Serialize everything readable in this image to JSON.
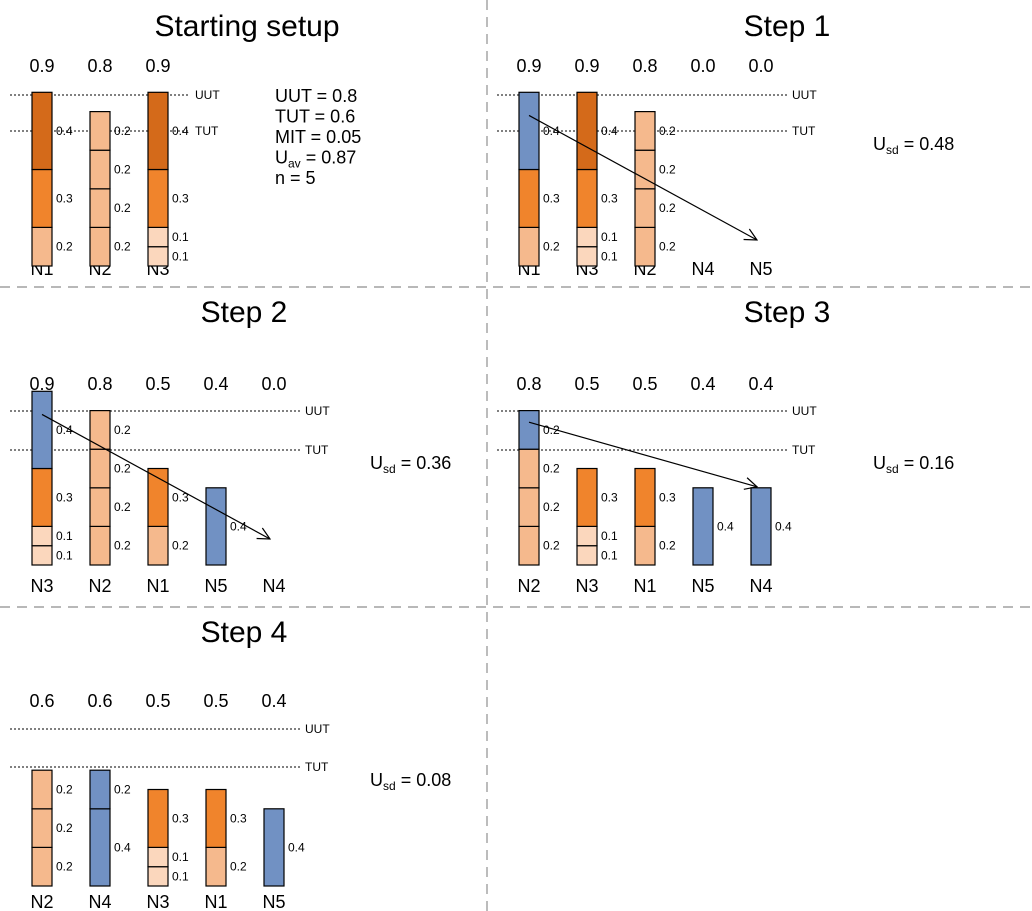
{
  "colors": {
    "very_high": "#d46a1a",
    "high": "#f0842c",
    "medium": "#f5b98d",
    "low": "#fbd7bd",
    "moved": "#7191c3",
    "divider": "#a0a0a0"
  },
  "labels": {
    "uut": "UUT",
    "tut": "TUT",
    "usd_prefix": "U",
    "usd_sub": "sd",
    "usd_sep": " = "
  },
  "params": [
    {
      "name": "UUT",
      "text": "UUT = 0.8"
    },
    {
      "name": "TUT",
      "text": "TUT = 0.6"
    },
    {
      "name": "MIT",
      "text": "MIT = 0.05"
    },
    {
      "name": "Uav",
      "main": "U",
      "sub": "av",
      "rest": " = 0.87"
    },
    {
      "name": "n",
      "text": "n = 5"
    }
  ],
  "panels": [
    {
      "title": "Starting setup",
      "nodes": [
        {
          "name": "N1",
          "util": "0.9",
          "segments": [
            {
              "value": 0.2,
              "c": "medium"
            },
            {
              "value": 0.3,
              "c": "high"
            },
            {
              "value": 0.4,
              "c": "very_high"
            }
          ]
        },
        {
          "name": "N2",
          "util": "0.8",
          "segments": [
            {
              "value": 0.2,
              "c": "medium"
            },
            {
              "value": 0.2,
              "c": "medium"
            },
            {
              "value": 0.2,
              "c": "medium"
            },
            {
              "value": 0.2,
              "c": "medium"
            }
          ]
        },
        {
          "name": "N3",
          "util": "0.9",
          "segments": [
            {
              "value": 0.1,
              "c": "low"
            },
            {
              "value": 0.1,
              "c": "low"
            },
            {
              "value": 0.3,
              "c": "high"
            },
            {
              "value": 0.4,
              "c": "very_high"
            }
          ]
        }
      ]
    },
    {
      "title": "Step 1",
      "usd": "0.48",
      "nodes": [
        {
          "name": "N1",
          "util": "0.9",
          "segments": [
            {
              "value": 0.2,
              "c": "medium"
            },
            {
              "value": 0.3,
              "c": "high"
            },
            {
              "value": 0.4,
              "c": "moved"
            }
          ]
        },
        {
          "name": "N3",
          "util": "0.9",
          "segments": [
            {
              "value": 0.1,
              "c": "low"
            },
            {
              "value": 0.1,
              "c": "low"
            },
            {
              "value": 0.3,
              "c": "high"
            },
            {
              "value": 0.4,
              "c": "very_high"
            }
          ]
        },
        {
          "name": "N2",
          "util": "0.8",
          "segments": [
            {
              "value": 0.2,
              "c": "medium"
            },
            {
              "value": 0.2,
              "c": "medium"
            },
            {
              "value": 0.2,
              "c": "medium"
            },
            {
              "value": 0.2,
              "c": "medium"
            }
          ]
        },
        {
          "name": "N4",
          "util": "0.0",
          "segments": []
        },
        {
          "name": "N5",
          "util": "0.0",
          "segments": []
        }
      ],
      "arrow": {
        "from": 0,
        "to": 4
      }
    },
    {
      "title": "Step 2",
      "usd": "0.36",
      "nodes": [
        {
          "name": "N3",
          "util": "0.9",
          "segments": [
            {
              "value": 0.1,
              "c": "low"
            },
            {
              "value": 0.1,
              "c": "low"
            },
            {
              "value": 0.3,
              "c": "high"
            },
            {
              "value": 0.4,
              "c": "moved"
            }
          ]
        },
        {
          "name": "N2",
          "util": "0.8",
          "segments": [
            {
              "value": 0.2,
              "c": "medium"
            },
            {
              "value": 0.2,
              "c": "medium"
            },
            {
              "value": 0.2,
              "c": "medium"
            },
            {
              "value": 0.2,
              "c": "medium"
            }
          ]
        },
        {
          "name": "N1",
          "util": "0.5",
          "segments": [
            {
              "value": 0.2,
              "c": "medium"
            },
            {
              "value": 0.3,
              "c": "high"
            }
          ]
        },
        {
          "name": "N5",
          "util": "0.4",
          "segments": [
            {
              "value": 0.4,
              "c": "moved"
            }
          ]
        },
        {
          "name": "N4",
          "util": "0.0",
          "segments": []
        }
      ],
      "arrow": {
        "from": 0,
        "to": 4
      }
    },
    {
      "title": "Step 3",
      "usd": "0.16",
      "nodes": [
        {
          "name": "N2",
          "util": "0.8",
          "segments": [
            {
              "value": 0.2,
              "c": "medium"
            },
            {
              "value": 0.2,
              "c": "medium"
            },
            {
              "value": 0.2,
              "c": "medium"
            },
            {
              "value": 0.2,
              "c": "moved"
            }
          ]
        },
        {
          "name": "N3",
          "util": "0.5",
          "segments": [
            {
              "value": 0.1,
              "c": "low"
            },
            {
              "value": 0.1,
              "c": "low"
            },
            {
              "value": 0.3,
              "c": "high"
            }
          ]
        },
        {
          "name": "N1",
          "util": "0.5",
          "segments": [
            {
              "value": 0.2,
              "c": "medium"
            },
            {
              "value": 0.3,
              "c": "high"
            }
          ]
        },
        {
          "name": "N5",
          "util": "0.4",
          "segments": [
            {
              "value": 0.4,
              "c": "moved"
            }
          ]
        },
        {
          "name": "N4",
          "util": "0.4",
          "segments": [
            {
              "value": 0.4,
              "c": "moved"
            }
          ]
        }
      ],
      "arrow": {
        "from": 0,
        "to": 4
      }
    },
    {
      "title": "Step 4",
      "usd": "0.08",
      "nodes": [
        {
          "name": "N2",
          "util": "0.6",
          "segments": [
            {
              "value": 0.2,
              "c": "medium"
            },
            {
              "value": 0.2,
              "c": "medium"
            },
            {
              "value": 0.2,
              "c": "medium"
            }
          ]
        },
        {
          "name": "N4",
          "util": "0.6",
          "segments": [
            {
              "value": 0.4,
              "c": "moved"
            },
            {
              "value": 0.2,
              "c": "moved"
            }
          ]
        },
        {
          "name": "N3",
          "util": "0.5",
          "segments": [
            {
              "value": 0.1,
              "c": "low"
            },
            {
              "value": 0.1,
              "c": "low"
            },
            {
              "value": 0.3,
              "c": "high"
            }
          ]
        },
        {
          "name": "N1",
          "util": "0.5",
          "segments": [
            {
              "value": 0.2,
              "c": "medium"
            },
            {
              "value": 0.3,
              "c": "high"
            }
          ]
        },
        {
          "name": "N5",
          "util": "0.4",
          "segments": [
            {
              "value": 0.4,
              "c": "moved"
            }
          ]
        }
      ]
    }
  ]
}
